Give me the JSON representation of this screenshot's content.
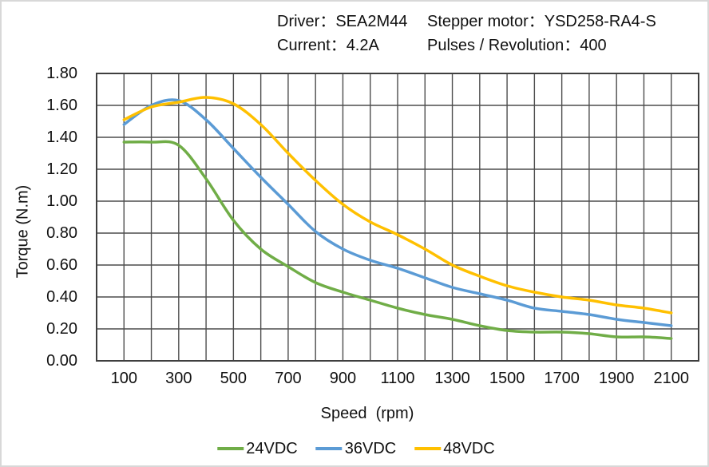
{
  "header": {
    "row1": {
      "left": "Driver：SEA2M44",
      "right": "Stepper motor：YSD258-RA4-S"
    },
    "row2": {
      "left": "Current：4.2A",
      "right": "Pulses / Revolution：400"
    }
  },
  "chart_data": {
    "type": "line",
    "title": "",
    "xlabel": "Speed  (rpm)",
    "ylabel": "Torque (N.m)",
    "x": [
      100,
      200,
      300,
      400,
      500,
      600,
      700,
      800,
      900,
      1000,
      1100,
      1200,
      1300,
      1400,
      1500,
      1600,
      1700,
      1800,
      1900,
      2000,
      2100
    ],
    "series": [
      {
        "name": "24VDC",
        "color": "#70AD47",
        "values": [
          1.37,
          1.37,
          1.35,
          1.14,
          0.88,
          0.7,
          0.59,
          0.49,
          0.43,
          0.38,
          0.33,
          0.29,
          0.26,
          0.22,
          0.19,
          0.18,
          0.18,
          0.17,
          0.15,
          0.15,
          0.14
        ]
      },
      {
        "name": "36VDC",
        "color": "#5B9BD5",
        "values": [
          1.48,
          1.6,
          1.63,
          1.51,
          1.33,
          1.15,
          0.98,
          0.81,
          0.7,
          0.63,
          0.58,
          0.52,
          0.46,
          0.42,
          0.38,
          0.33,
          0.31,
          0.29,
          0.26,
          0.24,
          0.22
        ]
      },
      {
        "name": "48VDC",
        "color": "#FFC000",
        "values": [
          1.51,
          1.59,
          1.62,
          1.65,
          1.61,
          1.48,
          1.3,
          1.13,
          0.98,
          0.87,
          0.79,
          0.7,
          0.6,
          0.53,
          0.47,
          0.43,
          0.4,
          0.38,
          0.35,
          0.33,
          0.3
        ]
      }
    ],
    "xlim": [
      0,
      2200
    ],
    "ylim": [
      0,
      1.8
    ],
    "x_grid_step": 100,
    "y_grid_step": 0.2,
    "x_ticks": [
      "100",
      "300",
      "500",
      "700",
      "900",
      "1100",
      "1300",
      "1500",
      "1700",
      "1900",
      "2100"
    ],
    "y_ticks": [
      "1.80",
      "1.60",
      "1.40",
      "1.20",
      "1.00",
      "0.80",
      "0.60",
      "0.40",
      "0.20",
      "0.00"
    ],
    "grid": true,
    "legend_position": "bottom"
  },
  "colors": {
    "grid": "#4d4d4d",
    "plot_border": "#3f3f3f",
    "text": "#111111"
  }
}
